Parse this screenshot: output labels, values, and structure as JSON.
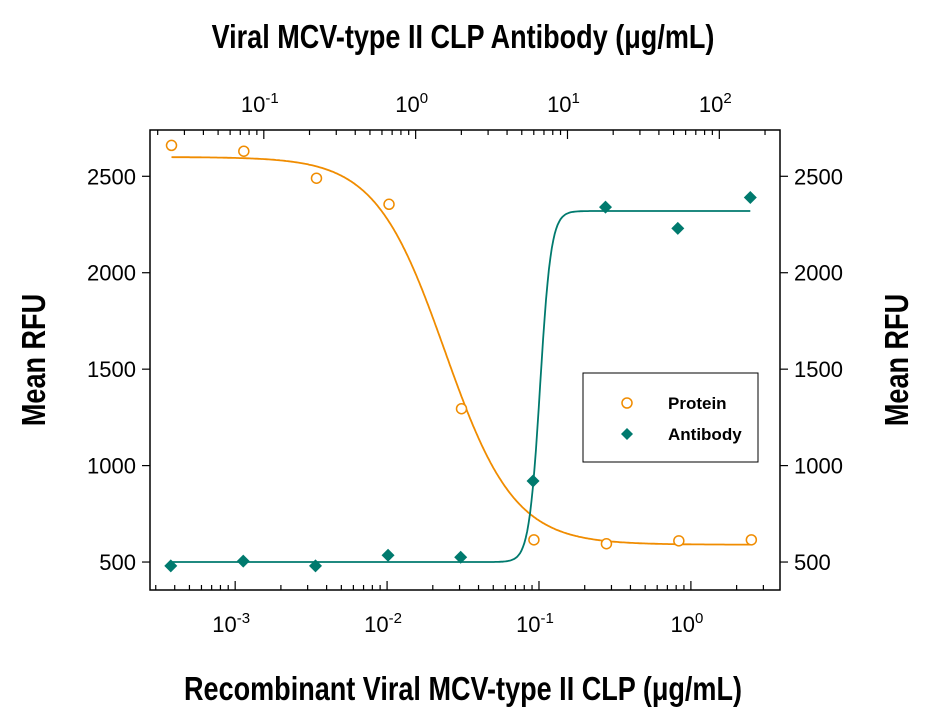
{
  "chart_data": {
    "type": "scatter",
    "title": "Viral MCV-type II CLP Antibody (μg/mL)",
    "xlabel": "Recombinant Viral MCV-type II CLP (μg/mL)",
    "ylabel_left": "Mean RFU",
    "ylabel_right": "Mean RFU",
    "x_scale": "log",
    "x_bottom_range": [
      0.000275,
      3.86
    ],
    "x_top_range": [
      0.0178,
      251
    ],
    "ylim": [
      355,
      2740
    ],
    "grid": false,
    "legend_placement": "center-right",
    "x_bottom_ticks": [
      {
        "base": "10",
        "exp": "-3",
        "value": 0.001
      },
      {
        "base": "10",
        "exp": "-2",
        "value": 0.01
      },
      {
        "base": "10",
        "exp": "-1",
        "value": 0.1
      },
      {
        "base": "10",
        "exp": "0",
        "value": 1
      }
    ],
    "x_top_ticks": [
      {
        "base": "10",
        "exp": "-1",
        "value": 0.1
      },
      {
        "base": "10",
        "exp": "0",
        "value": 1
      },
      {
        "base": "10",
        "exp": "1",
        "value": 10
      },
      {
        "base": "10",
        "exp": "2",
        "value": 100
      }
    ],
    "y_ticks": [
      "500",
      "1000",
      "1500",
      "2000",
      "2500"
    ],
    "y_tick_values": [
      500,
      1000,
      1500,
      2000,
      2500
    ],
    "series": [
      {
        "name": "Protein",
        "axis": "bottom",
        "marker": "open-circle",
        "color": "#F08C00",
        "x": [
          0.000381,
          0.00114,
          0.00343,
          0.0103,
          0.0309,
          0.0926,
          0.278,
          0.833,
          2.5
        ],
        "y": [
          2660,
          2630,
          2490,
          2355,
          1295,
          615,
          595,
          610,
          615
        ],
        "fit": {
          "top": 2600,
          "bottom": 590,
          "ec50": 0.024,
          "hill": 1.9
        }
      },
      {
        "name": "Antibody",
        "axis": "top",
        "marker": "filled-diamond",
        "color": "#007A6E",
        "x": [
          0.0244,
          0.0732,
          0.219,
          0.658,
          1.98,
          5.93,
          17.8,
          53.3,
          160
        ],
        "y": [
          480,
          505,
          480,
          535,
          525,
          920,
          2340,
          2230,
          2390
        ],
        "fit": {
          "top": 2320,
          "bottom": 500,
          "ec50": 6.6,
          "hill": 12
        }
      }
    ]
  }
}
